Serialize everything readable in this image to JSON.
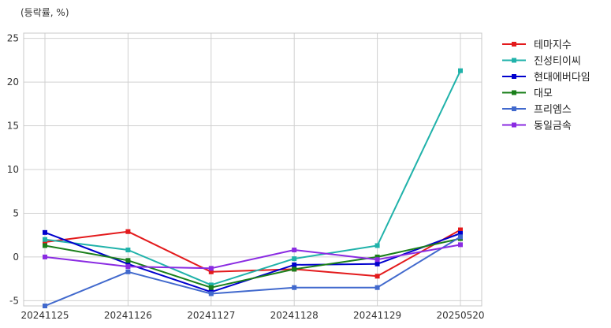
{
  "chart_data": {
    "type": "line",
    "unit_label": "(등락률, %)",
    "categories": [
      "20241125",
      "20241126",
      "20241127",
      "20241128",
      "20241129",
      "20250520"
    ],
    "ylim": [
      -5.6,
      25.6
    ],
    "yticks": [
      -5,
      0,
      5,
      10,
      15,
      20,
      25
    ],
    "grid": true,
    "legend_position": "right",
    "series": [
      {
        "name": "테마지수",
        "color": "#e31a1c",
        "values": [
          1.7,
          2.9,
          -1.7,
          -1.4,
          -2.2,
          3.1
        ]
      },
      {
        "name": "진성티이씨",
        "color": "#20b2aa",
        "values": [
          2.0,
          0.8,
          -3.2,
          -0.2,
          1.3,
          21.3
        ]
      },
      {
        "name": "현대에버다임",
        "color": "#0000cd",
        "values": [
          2.8,
          -0.8,
          -4.0,
          -0.9,
          -0.8,
          2.7
        ]
      },
      {
        "name": "대모",
        "color": "#1a7f1a",
        "values": [
          1.3,
          -0.4,
          -3.5,
          -1.4,
          0.0,
          2.1
        ]
      },
      {
        "name": "프리엠스",
        "color": "#4169cd",
        "values": [
          -5.6,
          -1.7,
          -4.2,
          -3.5,
          -3.5,
          2.3
        ]
      },
      {
        "name": "동일금속",
        "color": "#8a2be2",
        "values": [
          0.0,
          -1.1,
          -1.3,
          0.8,
          -0.3,
          1.4
        ]
      }
    ]
  }
}
